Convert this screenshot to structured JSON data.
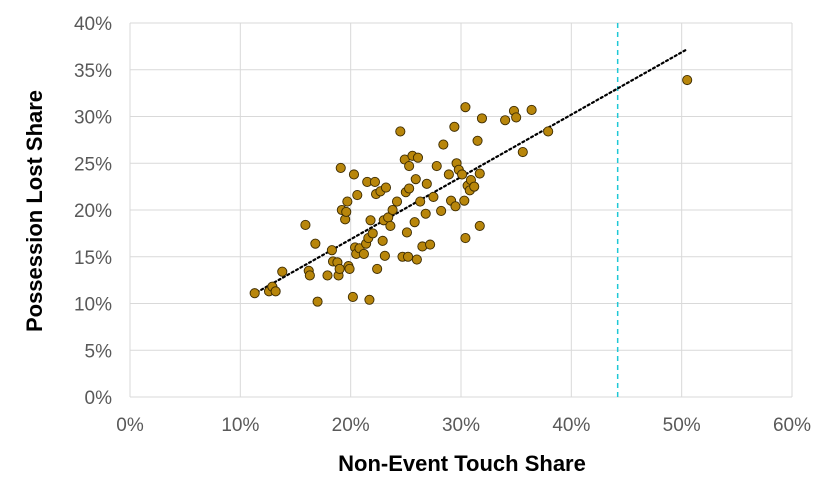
{
  "chart_data": {
    "type": "scatter",
    "title": "",
    "xlabel": "Non-Event Touch Share",
    "ylabel": "Possession Lost Share",
    "xlim": [
      0,
      60
    ],
    "ylim": [
      0,
      40
    ],
    "x_ticks": [
      "0%",
      "10%",
      "20%",
      "30%",
      "40%",
      "50%",
      "60%"
    ],
    "y_ticks": [
      "0%",
      "5%",
      "10%",
      "15%",
      "20%",
      "25%",
      "30%",
      "35%",
      "40%"
    ],
    "grid": true,
    "legend": "none",
    "marker_color": "#b8860b",
    "marker_edge_color": "#3b2a00",
    "trendline": {
      "style": "dotted",
      "color": "#000000",
      "x": [
        11.5,
        50.5
      ],
      "y": [
        11.2,
        37.2
      ]
    },
    "reference_line": {
      "orientation": "vertical",
      "x": 44.2,
      "style": "dashed",
      "color": "#1ec8d6"
    },
    "points": [
      [
        11.3,
        11.1
      ],
      [
        12.6,
        11.3
      ],
      [
        12.9,
        11.8
      ],
      [
        13.2,
        11.3
      ],
      [
        13.8,
        13.4
      ],
      [
        15.9,
        18.4
      ],
      [
        16.2,
        13.5
      ],
      [
        16.3,
        13.0
      ],
      [
        16.8,
        16.4
      ],
      [
        17.0,
        10.2
      ],
      [
        17.9,
        13.0
      ],
      [
        18.3,
        15.7
      ],
      [
        18.4,
        14.5
      ],
      [
        18.8,
        14.4
      ],
      [
        18.9,
        13.0
      ],
      [
        19.0,
        13.7
      ],
      [
        19.1,
        24.5
      ],
      [
        19.2,
        20.0
      ],
      [
        19.5,
        19.0
      ],
      [
        19.6,
        19.8
      ],
      [
        19.7,
        20.9
      ],
      [
        19.8,
        14.0
      ],
      [
        19.9,
        13.7
      ],
      [
        20.2,
        10.7
      ],
      [
        20.3,
        23.8
      ],
      [
        20.4,
        16.0
      ],
      [
        20.5,
        15.3
      ],
      [
        20.6,
        21.6
      ],
      [
        20.8,
        15.9
      ],
      [
        21.2,
        15.3
      ],
      [
        21.4,
        16.4
      ],
      [
        21.5,
        23.0
      ],
      [
        21.6,
        17.0
      ],
      [
        21.7,
        10.4
      ],
      [
        21.8,
        18.9
      ],
      [
        22.0,
        17.5
      ],
      [
        22.2,
        23.0
      ],
      [
        22.3,
        21.7
      ],
      [
        22.4,
        13.7
      ],
      [
        22.7,
        22.0
      ],
      [
        22.9,
        16.7
      ],
      [
        23.0,
        18.9
      ],
      [
        23.1,
        15.1
      ],
      [
        23.2,
        22.4
      ],
      [
        23.4,
        19.2
      ],
      [
        23.6,
        18.3
      ],
      [
        23.8,
        20.0
      ],
      [
        24.2,
        20.9
      ],
      [
        24.5,
        28.4
      ],
      [
        24.7,
        15.0
      ],
      [
        24.9,
        25.4
      ],
      [
        25.0,
        21.9
      ],
      [
        25.1,
        17.6
      ],
      [
        25.2,
        15.0
      ],
      [
        25.3,
        24.7
      ],
      [
        25.3,
        22.3
      ],
      [
        25.6,
        25.8
      ],
      [
        25.8,
        18.7
      ],
      [
        25.9,
        23.3
      ],
      [
        26.0,
        14.7
      ],
      [
        26.1,
        25.6
      ],
      [
        26.3,
        20.9
      ],
      [
        26.5,
        16.1
      ],
      [
        26.8,
        19.6
      ],
      [
        26.9,
        22.8
      ],
      [
        27.2,
        16.3
      ],
      [
        27.5,
        21.4
      ],
      [
        27.8,
        24.7
      ],
      [
        28.2,
        19.9
      ],
      [
        28.4,
        27.0
      ],
      [
        28.9,
        23.8
      ],
      [
        29.1,
        21.0
      ],
      [
        29.4,
        28.9
      ],
      [
        29.5,
        20.4
      ],
      [
        29.6,
        25.0
      ],
      [
        29.8,
        24.3
      ],
      [
        30.1,
        23.8
      ],
      [
        30.3,
        21.0
      ],
      [
        30.4,
        31.0
      ],
      [
        30.4,
        17.0
      ],
      [
        30.6,
        22.6
      ],
      [
        30.8,
        22.1
      ],
      [
        30.9,
        23.2
      ],
      [
        31.2,
        22.5
      ],
      [
        31.5,
        27.4
      ],
      [
        31.7,
        23.9
      ],
      [
        31.7,
        18.3
      ],
      [
        31.9,
        29.8
      ],
      [
        34.0,
        29.6
      ],
      [
        34.8,
        30.6
      ],
      [
        35.0,
        29.9
      ],
      [
        35.6,
        26.2
      ],
      [
        36.4,
        30.7
      ],
      [
        37.9,
        28.4
      ],
      [
        50.5,
        33.9
      ]
    ]
  }
}
